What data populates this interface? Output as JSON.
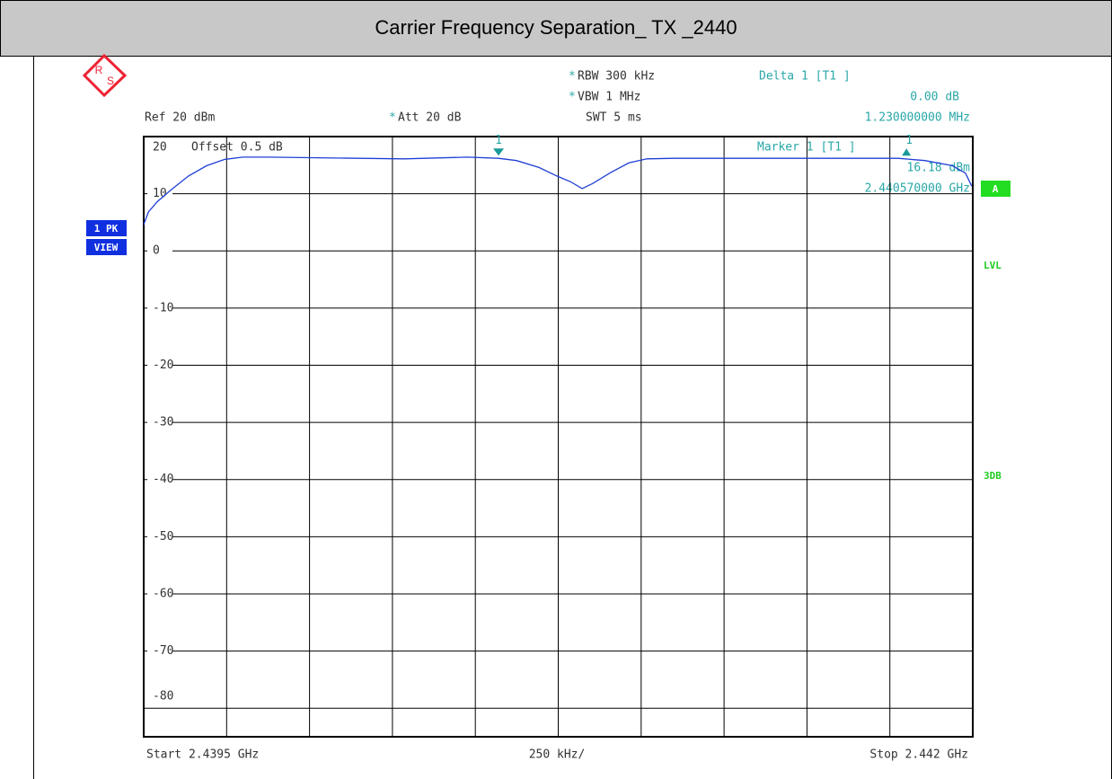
{
  "chart_data": {
    "type": "line",
    "title": "Carrier Frequency Separation_ TX _2440",
    "x": [
      2.4395,
      2.439514,
      2.439541,
      2.439581,
      2.439635,
      2.43969,
      2.439744,
      2.439798,
      2.439879,
      2.44015,
      2.440285,
      2.440475,
      2.44057,
      2.440624,
      2.440692,
      2.440746,
      2.440787,
      2.440822,
      2.440854,
      2.440908,
      2.440963,
      2.441017,
      2.441098,
      2.441504,
      2.441775,
      2.441856,
      2.441938,
      2.441978,
      2.441997
    ],
    "values": [
      4.6,
      6.8,
      8.6,
      10.6,
      13.1,
      14.9,
      16.0,
      16.4,
      16.4,
      16.2,
      16.1,
      16.4,
      16.2,
      15.8,
      14.6,
      13.1,
      12.1,
      10.9,
      11.8,
      13.7,
      15.4,
      16.1,
      16.2,
      16.2,
      16.2,
      15.8,
      14.9,
      13.6,
      11.3
    ],
    "color": "#1f3fd6",
    "xlim": [
      2.4395,
      2.442
    ],
    "xticks": [
      2.4395,
      2.43975,
      2.44,
      2.44025,
      2.4405,
      2.44075,
      2.441,
      2.44125,
      2.4415,
      2.44175,
      2.442
    ],
    "ylim": [
      -85,
      20
    ],
    "yticks": [
      20,
      10,
      0,
      -10,
      -20,
      -30,
      -40,
      -50,
      -60,
      -70,
      -80
    ],
    "grid": true,
    "markers": [
      {
        "label": "1",
        "x": 2.44057,
        "y": 16.18
      },
      {
        "label": "1",
        "x": 2.4418,
        "y": 16.18
      }
    ],
    "logo": [
      "R",
      "S"
    ],
    "settings": [
      {
        "mark": "*",
        "text": "RBW 300 kHz"
      },
      {
        "mark": "*",
        "text": "VBW 1 MHz"
      },
      {
        "text": "SWT 5 ms"
      }
    ],
    "ref": "Ref 20 dBm",
    "att": {
      "mark": "*",
      "text": "Att 20 dB"
    },
    "offset": "Offset 0.5 dB",
    "delta": [
      "Delta 1 [T1 ]",
      "0.00 dB",
      "1.230000000 MHz"
    ],
    "marker_readout": [
      "Marker 1 [T1 ]",
      "16.18 dBm",
      "2.440570000 GHz"
    ],
    "badges": [
      "1 PK",
      "VIEW"
    ],
    "side_labels": [
      "A",
      "LVL",
      "3DB"
    ],
    "start": "Start 2.4395 GHz",
    "span": "250 kHz/",
    "stop": "Stop 2.442 GHz"
  }
}
